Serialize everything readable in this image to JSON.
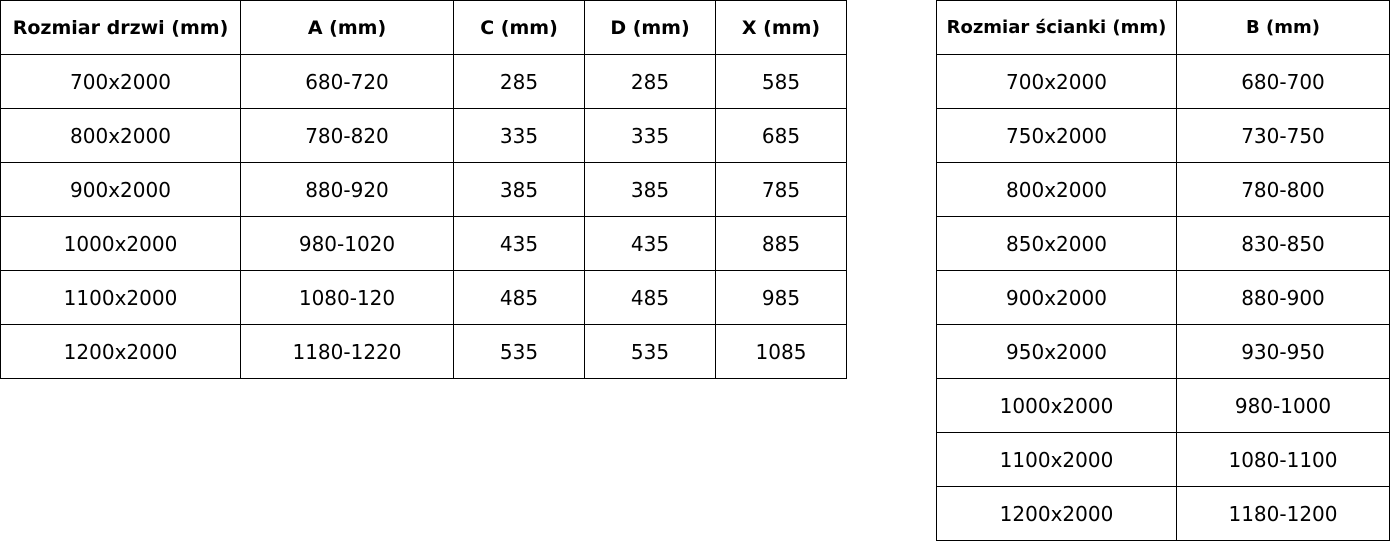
{
  "door_table": {
    "headers": [
      "Rozmiar drzwi (mm)",
      "A (mm)",
      "C (mm)",
      "D (mm)",
      "X (mm)"
    ],
    "rows": [
      [
        "700x2000",
        "680-720",
        "285",
        "285",
        "585"
      ],
      [
        "800x2000",
        "780-820",
        "335",
        "335",
        "685"
      ],
      [
        "900x2000",
        "880-920",
        "385",
        "385",
        "785"
      ],
      [
        "1000x2000",
        "980-1020",
        "435",
        "435",
        "885"
      ],
      [
        "1100x2000",
        "1080-120",
        "485",
        "485",
        "985"
      ],
      [
        "1200x2000",
        "1180-1220",
        "535",
        "535",
        "1085"
      ]
    ]
  },
  "wall_table": {
    "headers": [
      "Rozmiar ścianki (mm)",
      "B (mm)"
    ],
    "rows": [
      [
        "700x2000",
        "680-700"
      ],
      [
        "750x2000",
        "730-750"
      ],
      [
        "800x2000",
        "780-800"
      ],
      [
        "850x2000",
        "830-850"
      ],
      [
        "900x2000",
        "880-900"
      ],
      [
        "950x2000",
        "930-950"
      ],
      [
        "1000x2000",
        "980-1000"
      ],
      [
        "1100x2000",
        "1080-1100"
      ],
      [
        "1200x2000",
        "1180-1200"
      ]
    ]
  }
}
